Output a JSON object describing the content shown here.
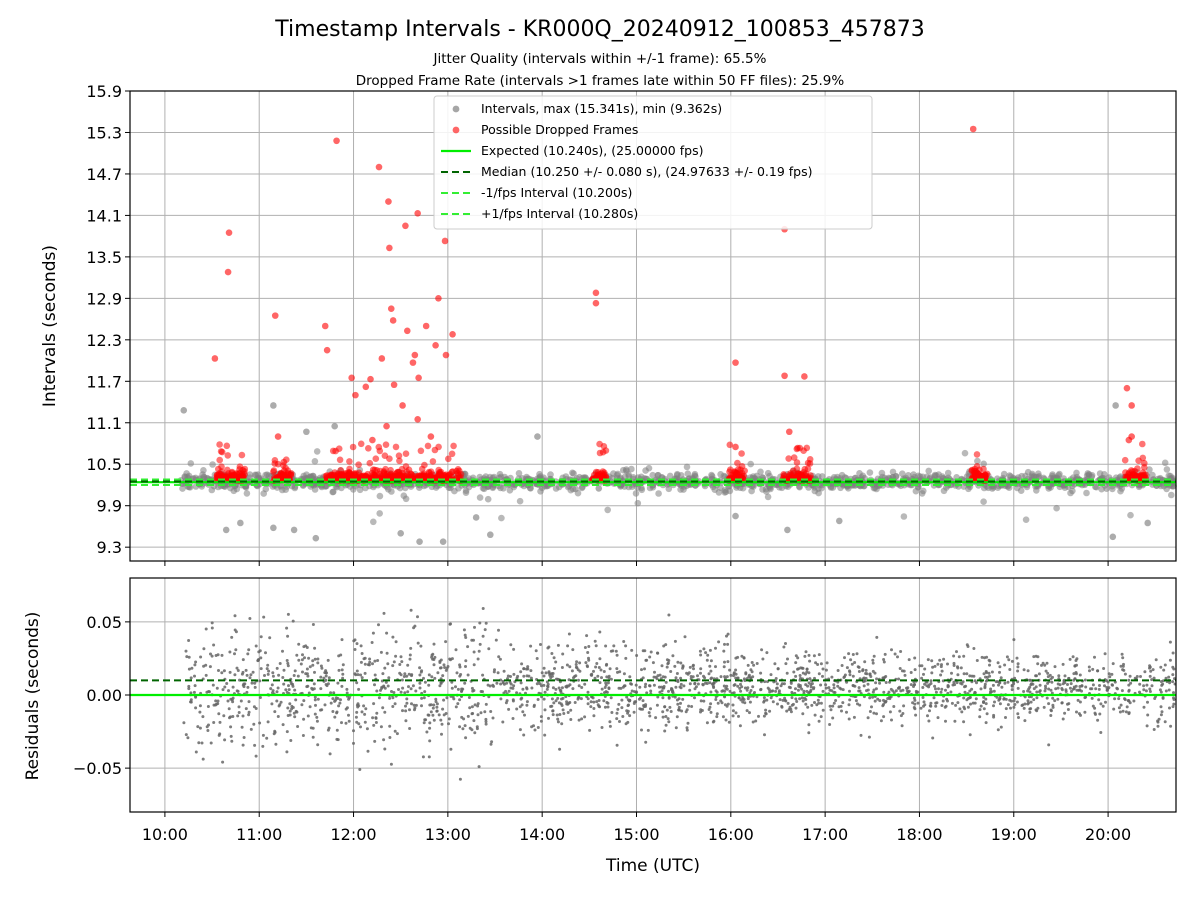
{
  "chart_data": [
    {
      "type": "scatter",
      "title": "Timestamp Intervals - KR000Q_20240912_100853_457873",
      "subtitle_1": "Jitter Quality (intervals within +/-1 frame): 65.5%",
      "subtitle_2": "Dropped Frame Rate (intervals >1 frames late within 50 FF files): 25.9%",
      "ylabel": "Intervals (seconds)",
      "ylim": [
        9.1,
        15.9
      ],
      "yticks": [
        "9.3",
        "9.9",
        "10.5",
        "11.1",
        "11.7",
        "12.3",
        "12.9",
        "13.5",
        "14.1",
        "14.7",
        "15.3",
        "15.9"
      ],
      "xlim_hours": [
        9.63,
        20.72
      ],
      "grid": true,
      "legend_position": "top-center",
      "legend": [
        "Intervals, max (15.341s), min (9.362s)",
        "Possible Dropped Frames",
        "Expected (10.240s), (25.00000 fps)",
        "Median (10.250 +/- 0.080 s), (24.97633 +/- 0.19 fps)",
        "-1/fps Interval (10.200s)",
        "+1/fps Interval (10.280s)"
      ],
      "reference_lines": {
        "expected": 10.24,
        "median": 10.25,
        "minus_one_fps": 10.2,
        "plus_one_fps": 10.28
      },
      "series": [
        {
          "name": "Intervals, max (15.341s), min (9.362s)",
          "color": "#808080",
          "description_points_hours_seconds": [
            [
              10.2,
              11.28
            ],
            [
              11.15,
              11.35
            ],
            [
              11.5,
              10.97
            ],
            [
              11.8,
              11.05
            ],
            [
              11.6,
              9.43
            ],
            [
              11.37,
              9.55
            ],
            [
              11.15,
              9.58
            ],
            [
              10.65,
              9.55
            ],
            [
              10.8,
              9.65
            ],
            [
              12.5,
              9.5
            ],
            [
              12.7,
              9.38
            ],
            [
              12.95,
              9.38
            ],
            [
              13.3,
              9.73
            ],
            [
              13.45,
              9.48
            ],
            [
              13.95,
              10.9
            ],
            [
              14.6,
              10.15
            ],
            [
              16.05,
              9.75
            ],
            [
              16.6,
              9.55
            ],
            [
              17.15,
              9.68
            ],
            [
              20.05,
              9.45
            ],
            [
              20.08,
              11.35
            ],
            [
              20.42,
              9.65
            ]
          ],
          "band_center": 10.25,
          "band_halfwidth": 0.2
        },
        {
          "name": "Possible Dropped Frames",
          "color": "#ff0000",
          "points_hours_seconds": [
            [
              10.53,
              12.03
            ],
            [
              10.67,
              13.28
            ],
            [
              10.68,
              13.85
            ],
            [
              11.17,
              12.65
            ],
            [
              11.2,
              10.9
            ],
            [
              11.7,
              12.5
            ],
            [
              11.72,
              12.15
            ],
            [
              11.82,
              15.18
            ],
            [
              11.98,
              11.75
            ],
            [
              12.02,
              11.5
            ],
            [
              12.13,
              11.62
            ],
            [
              12.18,
              11.73
            ],
            [
              12.2,
              10.85
            ],
            [
              12.27,
              14.8
            ],
            [
              12.3,
              12.03
            ],
            [
              12.35,
              11.05
            ],
            [
              12.37,
              14.3
            ],
            [
              12.38,
              13.63
            ],
            [
              12.4,
              12.75
            ],
            [
              12.42,
              12.58
            ],
            [
              12.43,
              11.65
            ],
            [
              12.52,
              11.35
            ],
            [
              12.55,
              13.95
            ],
            [
              12.57,
              12.43
            ],
            [
              12.63,
              11.97
            ],
            [
              12.65,
              12.08
            ],
            [
              12.68,
              14.13
            ],
            [
              12.69,
              11.75
            ],
            [
              12.68,
              11.15
            ],
            [
              12.77,
              12.5
            ],
            [
              12.82,
              10.9
            ],
            [
              12.87,
              12.22
            ],
            [
              12.9,
              12.9
            ],
            [
              12.97,
              13.73
            ],
            [
              12.98,
              12.08
            ],
            [
              13.05,
              12.38
            ],
            [
              14.57,
              12.98
            ],
            [
              14.57,
              12.83
            ],
            [
              16.05,
              11.97
            ],
            [
              16.05,
              10.75
            ],
            [
              16.57,
              13.9
            ],
            [
              16.57,
              11.78
            ],
            [
              16.62,
              10.97
            ],
            [
              16.78,
              11.77
            ],
            [
              18.57,
              15.35
            ],
            [
              20.2,
              11.6
            ],
            [
              20.22,
              10.85
            ],
            [
              20.25,
              11.35
            ],
            [
              20.25,
              10.9
            ]
          ],
          "clusters_hours": [
            [
              10.55,
              10.85
            ],
            [
              11.15,
              11.35
            ],
            [
              11.7,
              13.15
            ],
            [
              14.52,
              14.68
            ],
            [
              15.98,
              16.15
            ],
            [
              16.55,
              16.85
            ],
            [
              18.55,
              18.72
            ],
            [
              20.18,
              20.4
            ]
          ]
        }
      ]
    },
    {
      "type": "scatter",
      "ylabel": "Residuals (seconds)",
      "xlabel": "Time (UTC)",
      "ylim": [
        -0.08,
        0.08
      ],
      "yticks": [
        "−0.05",
        "0.00",
        "0.05"
      ],
      "xticks": [
        "10:00",
        "11:00",
        "12:00",
        "13:00",
        "14:00",
        "15:00",
        "16:00",
        "17:00",
        "18:00",
        "19:00",
        "20:00"
      ],
      "xlim_hours": [
        9.63,
        20.72
      ],
      "grid": true,
      "reference_lines": {
        "zero": 0.0,
        "median_offset": 0.01
      },
      "series": [
        {
          "name": "",
          "color": "#666666",
          "spread_seconds": 0.04
        }
      ]
    }
  ]
}
